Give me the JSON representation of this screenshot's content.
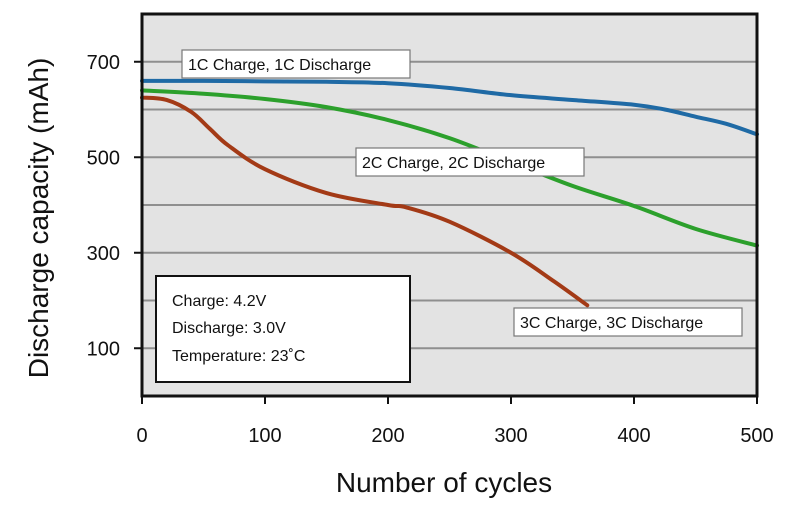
{
  "chart_data": {
    "type": "line",
    "title": "",
    "xlabel": "Number of cycles",
    "ylabel": "Discharge capacity (mAh)",
    "xlim": [
      0,
      500
    ],
    "ylim": [
      0,
      800
    ],
    "xticks": [
      "0",
      "100",
      "200",
      "300",
      "400",
      "500"
    ],
    "yticks": [
      "100",
      "300",
      "500",
      "700"
    ],
    "grid": true,
    "colors": {
      "plot_background": "#e3e3e3",
      "gridline": "#8f8f8f",
      "series_1c": "#1f6aa5",
      "series_2c": "#2ca02c",
      "series_3c": "#a33a16"
    },
    "series": [
      {
        "name": "1C Charge, 1C Discharge",
        "color": "#1f6aa5",
        "x": [
          0,
          50,
          100,
          150,
          200,
          250,
          300,
          350,
          400,
          425,
          450,
          475,
          500
        ],
        "y": [
          660,
          660,
          659,
          658,
          655,
          645,
          630,
          620,
          610,
          600,
          585,
          570,
          548
        ]
      },
      {
        "name": "2C Charge, 2C Discharge",
        "color": "#2ca02c",
        "x": [
          0,
          50,
          100,
          150,
          200,
          250,
          300,
          350,
          400,
          450,
          500
        ],
        "y": [
          640,
          633,
          622,
          605,
          578,
          540,
          490,
          440,
          398,
          350,
          315
        ]
      },
      {
        "name": "3C Charge, 3C Discharge",
        "color": "#a33a16",
        "x": [
          0,
          20,
          40,
          55,
          70,
          100,
          150,
          200,
          215,
          250,
          300,
          335,
          362
        ],
        "y": [
          625,
          620,
          595,
          560,
          525,
          475,
          425,
          400,
          395,
          365,
          300,
          240,
          190
        ]
      }
    ],
    "annotations": {
      "info_lines": [
        "Charge: 4.2V",
        "Discharge: 3.0V",
        "Temperature: 23˚C"
      ]
    }
  }
}
